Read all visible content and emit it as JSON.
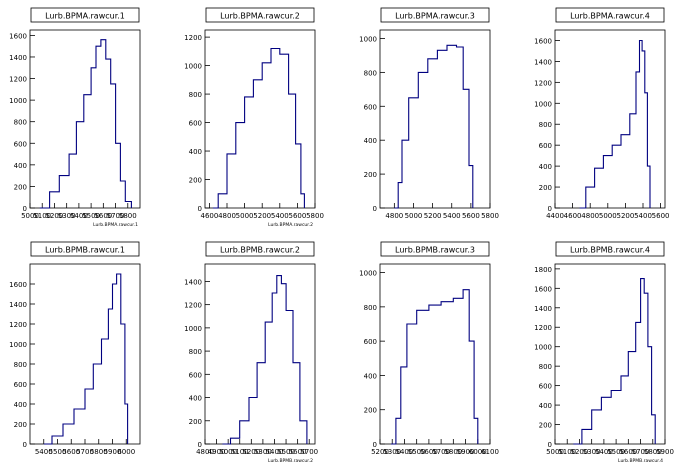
{
  "page": {
    "background": "#ffffff",
    "line_color": "#000080",
    "axis_color": "#000000"
  },
  "chart_data": [
    {
      "type": "histogram",
      "title": "Lurb.BPMA.rawcur.1",
      "axis_note": "Lurb.BPMA.rawcur.1",
      "xlim": [
        5000,
        5900
      ],
      "ylim": [
        0,
        1650
      ],
      "xticks": [
        5000,
        5100,
        5200,
        5300,
        5400,
        5500,
        5600,
        5700,
        5800
      ],
      "yticks": [
        0,
        200,
        400,
        600,
        800,
        1000,
        1200,
        1400,
        1600
      ],
      "x": [
        5080,
        5160,
        5240,
        5320,
        5380,
        5440,
        5500,
        5540,
        5580,
        5620,
        5660,
        5700,
        5740,
        5780,
        5830
      ],
      "values": [
        0,
        150,
        300,
        500,
        800,
        1050,
        1300,
        1500,
        1560,
        1380,
        1150,
        600,
        250,
        60,
        0
      ]
    },
    {
      "type": "histogram",
      "title": "Lurb.BPMA.rawcur.2",
      "axis_note": "Lurb.BPMA.rawcur.2",
      "xlim": [
        4550,
        5800
      ],
      "ylim": [
        0,
        1250
      ],
      "xticks": [
        4600,
        4800,
        5000,
        5200,
        5400,
        5600,
        5800
      ],
      "yticks": [
        0,
        200,
        400,
        600,
        800,
        1000,
        1200
      ],
      "x": [
        4640,
        4700,
        4800,
        4900,
        5000,
        5100,
        5200,
        5300,
        5400,
        5500,
        5580,
        5640,
        5680
      ],
      "values": [
        0,
        100,
        380,
        600,
        780,
        900,
        1020,
        1120,
        1080,
        800,
        450,
        100,
        0
      ]
    },
    {
      "type": "histogram",
      "title": "Lurb.BPMA.rawcur.3",
      "axis_note": "",
      "xlim": [
        4650,
        5800
      ],
      "ylim": [
        0,
        1050
      ],
      "xticks": [
        4800,
        5000,
        5200,
        5400,
        5600,
        5800
      ],
      "yticks": [
        0,
        200,
        400,
        600,
        800,
        1000
      ],
      "x": [
        4800,
        4840,
        4880,
        4950,
        5050,
        5150,
        5250,
        5350,
        5450,
        5520,
        5580,
        5620
      ],
      "values": [
        0,
        150,
        400,
        650,
        800,
        880,
        930,
        960,
        950,
        700,
        250,
        0
      ]
    },
    {
      "type": "histogram",
      "title": "Lurb.BPMA.rawcur.4",
      "axis_note": "",
      "xlim": [
        4400,
        5650
      ],
      "ylim": [
        0,
        1700
      ],
      "xticks": [
        4400,
        4600,
        4800,
        5000,
        5200,
        5400,
        5600
      ],
      "yticks": [
        0,
        200,
        400,
        600,
        800,
        1000,
        1200,
        1400,
        1600
      ],
      "x": [
        4680,
        4750,
        4850,
        4950,
        5050,
        5150,
        5250,
        5320,
        5360,
        5390,
        5420,
        5450,
        5480
      ],
      "values": [
        0,
        200,
        380,
        500,
        600,
        700,
        900,
        1300,
        1600,
        1500,
        1100,
        400,
        0
      ]
    },
    {
      "type": "histogram",
      "title": "Lurb.BPMB.rawcur.1",
      "axis_note": "",
      "xlim": [
        5300,
        6100
      ],
      "ylim": [
        0,
        1800
      ],
      "xticks": [
        5400,
        5500,
        5600,
        5700,
        5800,
        5900,
        6000
      ],
      "yticks": [
        0,
        200,
        400,
        600,
        800,
        1000,
        1200,
        1400,
        1600
      ],
      "x": [
        5400,
        5460,
        5540,
        5620,
        5700,
        5760,
        5820,
        5870,
        5900,
        5930,
        5960,
        5990,
        6010
      ],
      "values": [
        0,
        80,
        200,
        350,
        550,
        800,
        1050,
        1350,
        1600,
        1700,
        1200,
        400,
        0
      ]
    },
    {
      "type": "histogram",
      "title": "Lurb.BPMB.rawcur.2",
      "axis_note": "Lurb.BPMB.rawcur.2",
      "xlim": [
        4800,
        5750
      ],
      "ylim": [
        0,
        1550
      ],
      "xticks": [
        4800,
        4900,
        5000,
        5100,
        5200,
        5300,
        5400,
        5500,
        5600,
        5700
      ],
      "yticks": [
        0,
        200,
        400,
        600,
        800,
        1000,
        1200,
        1400
      ],
      "x": [
        4950,
        5020,
        5100,
        5180,
        5250,
        5320,
        5380,
        5420,
        5460,
        5500,
        5560,
        5620,
        5680
      ],
      "values": [
        0,
        50,
        200,
        400,
        700,
        1050,
        1300,
        1450,
        1380,
        1150,
        700,
        200,
        0
      ]
    },
    {
      "type": "histogram",
      "title": "Lurb.BPMB.rawcur.3",
      "axis_note": "",
      "xlim": [
        5200,
        6100
      ],
      "ylim": [
        0,
        1050
      ],
      "xticks": [
        5200,
        5300,
        5400,
        5500,
        5600,
        5700,
        5800,
        5900,
        6000,
        6100
      ],
      "yticks": [
        0,
        200,
        400,
        600,
        800,
        1000
      ],
      "x": [
        5290,
        5330,
        5370,
        5420,
        5500,
        5600,
        5700,
        5800,
        5880,
        5930,
        5970,
        6000
      ],
      "values": [
        0,
        150,
        450,
        700,
        780,
        810,
        830,
        850,
        900,
        600,
        150,
        0
      ]
    },
    {
      "type": "histogram",
      "title": "Lurb.BPMB.rawcur.4",
      "axis_note": "Lurb.BPMB.rawcur.4",
      "xlim": [
        5000,
        5900
      ],
      "ylim": [
        0,
        1850
      ],
      "xticks": [
        5000,
        5100,
        5200,
        5300,
        5400,
        5500,
        5600,
        5700,
        5800,
        5900
      ],
      "yticks": [
        0,
        200,
        400,
        600,
        800,
        1000,
        1200,
        1400,
        1600,
        1800
      ],
      "x": [
        5150,
        5220,
        5300,
        5380,
        5460,
        5540,
        5600,
        5660,
        5700,
        5730,
        5760,
        5790,
        5820
      ],
      "values": [
        0,
        150,
        350,
        480,
        550,
        700,
        950,
        1250,
        1700,
        1550,
        1000,
        300,
        0
      ]
    }
  ]
}
